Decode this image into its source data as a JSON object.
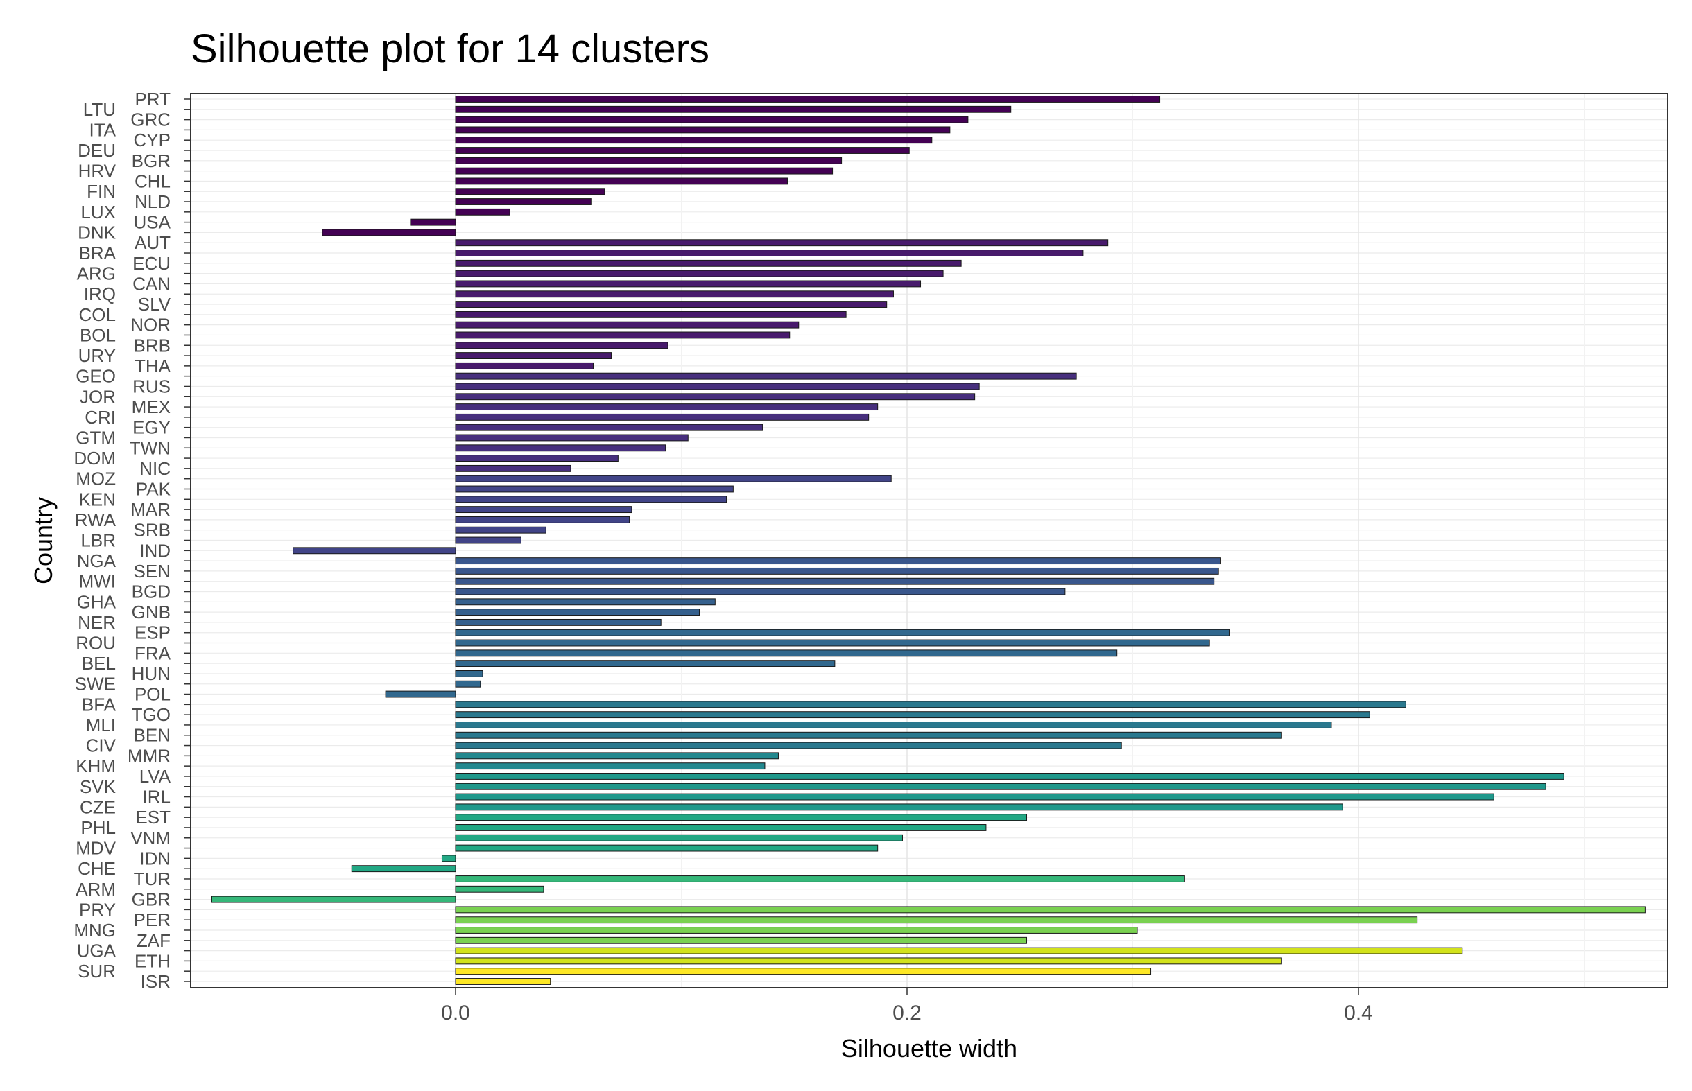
{
  "chart_data": {
    "type": "bar",
    "orientation": "horizontal",
    "title": "Silhouette plot for 14 clusters",
    "xlabel": "Silhouette width",
    "ylabel": "Country",
    "xlim": [
      -0.118,
      0.527
    ],
    "x_ticks": [
      0.0,
      0.2,
      0.4
    ],
    "x_tick_labels": [
      "0.0",
      "0.2",
      "0.4"
    ],
    "grid": true,
    "legend": "none",
    "bars": [
      {
        "label": "PRT",
        "value": 0.312,
        "cluster": 1
      },
      {
        "label": "LTU",
        "value": 0.246,
        "cluster": 1
      },
      {
        "label": "GRC",
        "value": 0.227,
        "cluster": 1
      },
      {
        "label": "ITA",
        "value": 0.219,
        "cluster": 1
      },
      {
        "label": "CYP",
        "value": 0.211,
        "cluster": 1
      },
      {
        "label": "DEU",
        "value": 0.201,
        "cluster": 1
      },
      {
        "label": "BGR",
        "value": 0.171,
        "cluster": 1
      },
      {
        "label": "HRV",
        "value": 0.167,
        "cluster": 1
      },
      {
        "label": "CHL",
        "value": 0.147,
        "cluster": 1
      },
      {
        "label": "FIN",
        "value": 0.066,
        "cluster": 1
      },
      {
        "label": "NLD",
        "value": 0.06,
        "cluster": 1
      },
      {
        "label": "LUX",
        "value": 0.024,
        "cluster": 1
      },
      {
        "label": "USA",
        "value": -0.02,
        "cluster": 1
      },
      {
        "label": "DNK",
        "value": -0.059,
        "cluster": 1
      },
      {
        "label": "AUT",
        "value": 0.289,
        "cluster": 2
      },
      {
        "label": "BRA",
        "value": 0.278,
        "cluster": 2
      },
      {
        "label": "ECU",
        "value": 0.224,
        "cluster": 2
      },
      {
        "label": "ARG",
        "value": 0.216,
        "cluster": 2
      },
      {
        "label": "CAN",
        "value": 0.206,
        "cluster": 2
      },
      {
        "label": "IRQ",
        "value": 0.194,
        "cluster": 2
      },
      {
        "label": "SLV",
        "value": 0.191,
        "cluster": 2
      },
      {
        "label": "COL",
        "value": 0.173,
        "cluster": 2
      },
      {
        "label": "NOR",
        "value": 0.152,
        "cluster": 2
      },
      {
        "label": "BOL",
        "value": 0.148,
        "cluster": 2
      },
      {
        "label": "BRB",
        "value": 0.094,
        "cluster": 2
      },
      {
        "label": "URY",
        "value": 0.069,
        "cluster": 2
      },
      {
        "label": "THA",
        "value": 0.061,
        "cluster": 2
      },
      {
        "label": "GEO",
        "value": 0.275,
        "cluster": 3
      },
      {
        "label": "RUS",
        "value": 0.232,
        "cluster": 3
      },
      {
        "label": "JOR",
        "value": 0.23,
        "cluster": 3
      },
      {
        "label": "MEX",
        "value": 0.187,
        "cluster": 3
      },
      {
        "label": "CRI",
        "value": 0.183,
        "cluster": 3
      },
      {
        "label": "EGY",
        "value": 0.136,
        "cluster": 3
      },
      {
        "label": "GTM",
        "value": 0.103,
        "cluster": 3
      },
      {
        "label": "TWN",
        "value": 0.093,
        "cluster": 3
      },
      {
        "label": "DOM",
        "value": 0.072,
        "cluster": 3
      },
      {
        "label": "NIC",
        "value": 0.051,
        "cluster": 3
      },
      {
        "label": "MOZ",
        "value": 0.193,
        "cluster": 4
      },
      {
        "label": "PAK",
        "value": 0.123,
        "cluster": 4
      },
      {
        "label": "KEN",
        "value": 0.12,
        "cluster": 4
      },
      {
        "label": "MAR",
        "value": 0.078,
        "cluster": 4
      },
      {
        "label": "RWA",
        "value": 0.077,
        "cluster": 4
      },
      {
        "label": "SRB",
        "value": 0.04,
        "cluster": 4
      },
      {
        "label": "LBR",
        "value": 0.029,
        "cluster": 4
      },
      {
        "label": "IND",
        "value": -0.072,
        "cluster": 4
      },
      {
        "label": "NGA",
        "value": 0.339,
        "cluster": 5
      },
      {
        "label": "SEN",
        "value": 0.338,
        "cluster": 5
      },
      {
        "label": "MWI",
        "value": 0.336,
        "cluster": 5
      },
      {
        "label": "BGD",
        "value": 0.27,
        "cluster": 5
      },
      {
        "label": "GHA",
        "value": 0.115,
        "cluster": 6
      },
      {
        "label": "GNB",
        "value": 0.108,
        "cluster": 6
      },
      {
        "label": "NER",
        "value": 0.091,
        "cluster": 6
      },
      {
        "label": "ESP",
        "value": 0.343,
        "cluster": 7
      },
      {
        "label": "ROU",
        "value": 0.334,
        "cluster": 7
      },
      {
        "label": "FRA",
        "value": 0.293,
        "cluster": 7
      },
      {
        "label": "BEL",
        "value": 0.168,
        "cluster": 7
      },
      {
        "label": "HUN",
        "value": 0.012,
        "cluster": 7
      },
      {
        "label": "SWE",
        "value": 0.011,
        "cluster": 7
      },
      {
        "label": "POL",
        "value": -0.031,
        "cluster": 7
      },
      {
        "label": "BFA",
        "value": 0.421,
        "cluster": 8
      },
      {
        "label": "TGO",
        "value": 0.405,
        "cluster": 8
      },
      {
        "label": "MLI",
        "value": 0.388,
        "cluster": 8
      },
      {
        "label": "BEN",
        "value": 0.366,
        "cluster": 8
      },
      {
        "label": "CIV",
        "value": 0.295,
        "cluster": 8
      },
      {
        "label": "MMR",
        "value": 0.143,
        "cluster": 9
      },
      {
        "label": "KHM",
        "value": 0.137,
        "cluster": 9
      },
      {
        "label": "LVA",
        "value": 0.491,
        "cluster": 10
      },
      {
        "label": "SVK",
        "value": 0.483,
        "cluster": 10
      },
      {
        "label": "IRL",
        "value": 0.46,
        "cluster": 10
      },
      {
        "label": "CZE",
        "value": 0.393,
        "cluster": 10
      },
      {
        "label": "EST",
        "value": 0.253,
        "cluster": 11
      },
      {
        "label": "PHL",
        "value": 0.235,
        "cluster": 11
      },
      {
        "label": "VNM",
        "value": 0.198,
        "cluster": 11
      },
      {
        "label": "MDV",
        "value": 0.187,
        "cluster": 11
      },
      {
        "label": "IDN",
        "value": -0.006,
        "cluster": 11
      },
      {
        "label": "CHE",
        "value": -0.046,
        "cluster": 11
      },
      {
        "label": "TUR",
        "value": 0.323,
        "cluster": 12
      },
      {
        "label": "ARM",
        "value": 0.039,
        "cluster": 12
      },
      {
        "label": "GBR",
        "value": -0.108,
        "cluster": 12
      },
      {
        "label": "PRY",
        "value": 0.527,
        "cluster": 13
      },
      {
        "label": "PER",
        "value": 0.426,
        "cluster": 13
      },
      {
        "label": "MNG",
        "value": 0.302,
        "cluster": 13
      },
      {
        "label": "ZAF",
        "value": 0.253,
        "cluster": 13
      },
      {
        "label": "UGA",
        "value": 0.446,
        "cluster": 14
      },
      {
        "label": "ETH",
        "value": 0.366,
        "cluster": 14
      },
      {
        "label": "SUR",
        "value": 0.308,
        "cluster": 14
      },
      {
        "label": "ISR",
        "value": 0.042,
        "cluster": 14
      }
    ],
    "cluster_colors": {
      "1": "#440154",
      "2": "#481A6C",
      "3": "#472F7D",
      "4": "#414487",
      "5": "#39568C",
      "6": "#35608D",
      "7": "#31688E",
      "8": "#2A788E",
      "9": "#23888E",
      "10": "#1F988B",
      "11": "#22A884",
      "12": "#35B779",
      "13": "#7AD151",
      "14": "#D2E21B"
    },
    "cluster_colors_extra": {
      "14b": "#FDE725"
    }
  }
}
